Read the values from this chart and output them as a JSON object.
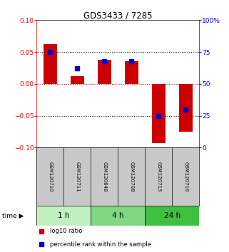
{
  "title": "GDS3433 / 7285",
  "samples": [
    "GSM120710",
    "GSM120711",
    "GSM120648",
    "GSM120708",
    "GSM120715",
    "GSM120716"
  ],
  "log10_ratio": [
    0.062,
    0.012,
    0.038,
    0.035,
    -0.093,
    -0.075
  ],
  "percentile_rank": [
    75,
    62,
    68,
    68,
    25,
    30
  ],
  "ylim_left": [
    -0.1,
    0.1
  ],
  "ylim_right": [
    0,
    100
  ],
  "yticks_left": [
    -0.1,
    -0.05,
    0,
    0.05,
    0.1
  ],
  "yticks_right": [
    0,
    25,
    50,
    75,
    100
  ],
  "groups": [
    {
      "label": "1 h",
      "indices": [
        0,
        1
      ],
      "color": "#c0f0c0"
    },
    {
      "label": "4 h",
      "indices": [
        2,
        3
      ],
      "color": "#80d880"
    },
    {
      "label": "24 h",
      "indices": [
        4,
        5
      ],
      "color": "#40c040"
    }
  ],
  "bar_color": "#cc0000",
  "dot_color": "#0000cc",
  "bar_width": 0.5,
  "dot_size": 18,
  "zero_line_color": "#cc0000",
  "bg_color": "#ffffff",
  "sample_box_color": "#c8c8c8",
  "legend_labels": [
    "log10 ratio",
    "percentile rank within the sample"
  ],
  "legend_colors": [
    "#cc0000",
    "#0000cc"
  ]
}
